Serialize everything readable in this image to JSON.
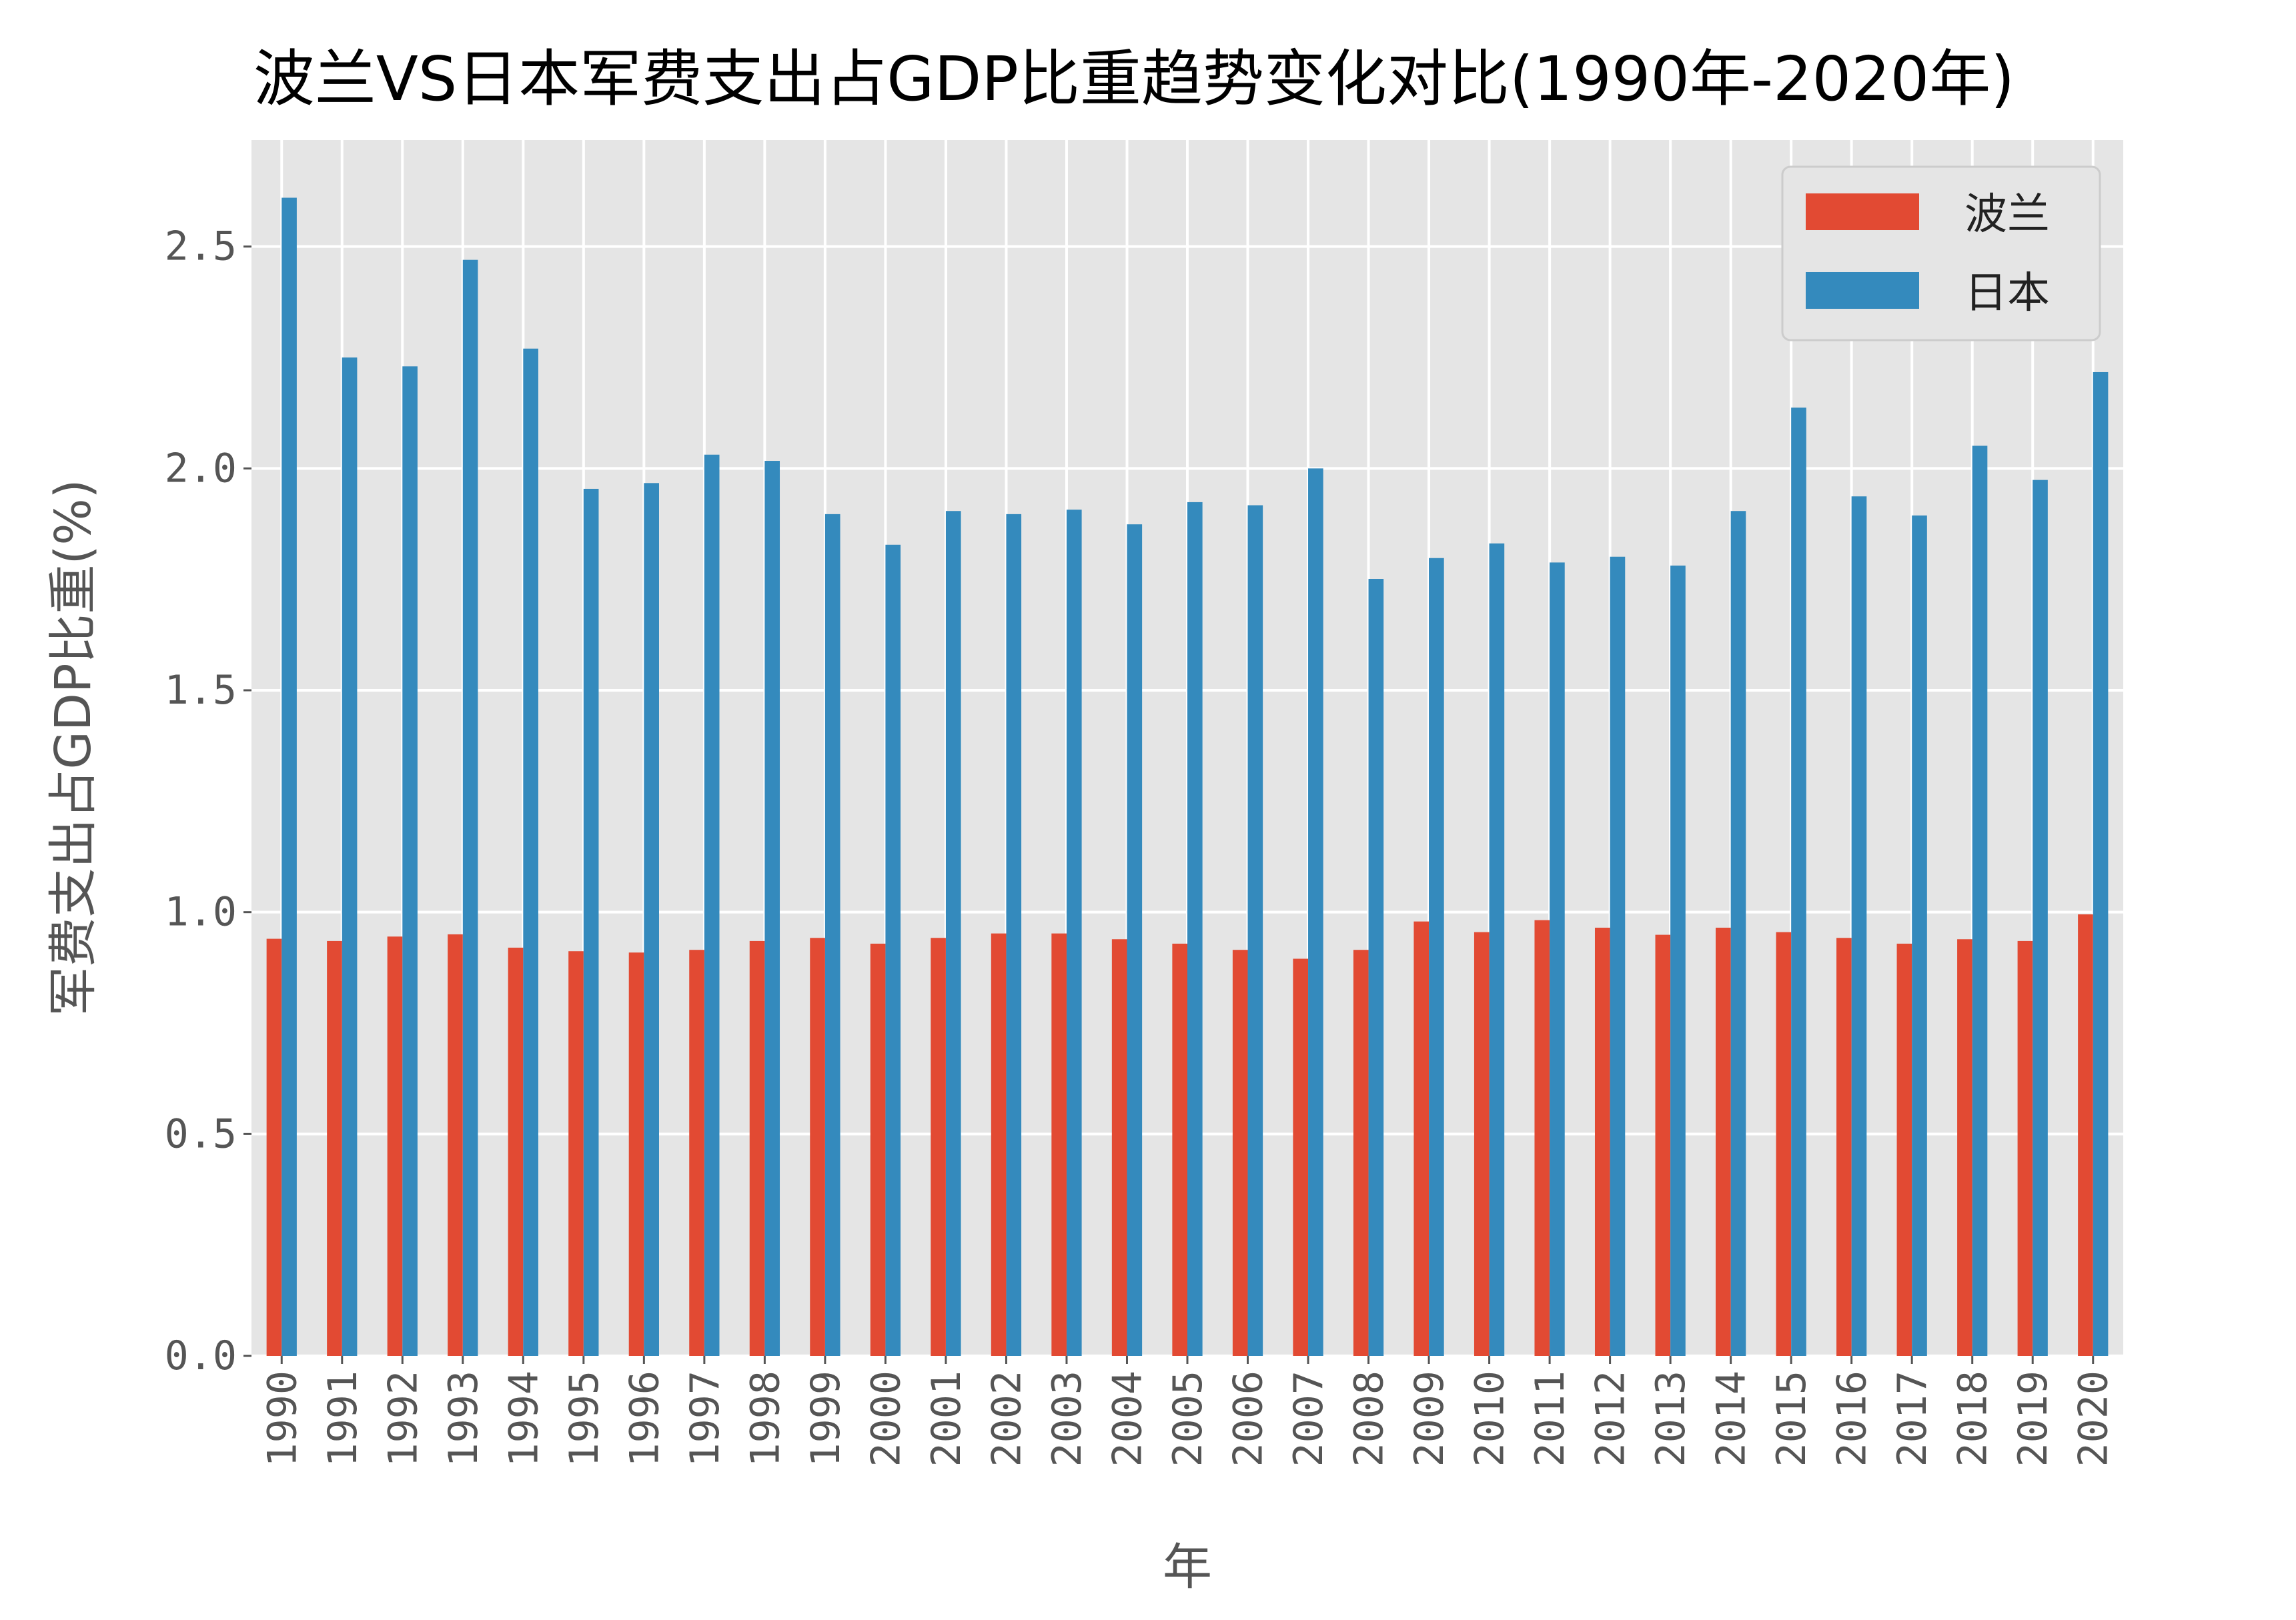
{
  "chart_data": {
    "type": "bar",
    "title": "波兰VS日本军费支出占GDP比重趋势变化对比(1990年-2020年)",
    "xlabel": "年",
    "ylabel": "军费支出占GDP比重(%)",
    "ylim": [
      0,
      2.74
    ],
    "yticks": [
      "0.0",
      "0.5",
      "1.0",
      "1.5",
      "2.0",
      "2.5"
    ],
    "grid": true,
    "legend_position": "top-right",
    "categories": [
      "1990",
      "1991",
      "1992",
      "1993",
      "1994",
      "1995",
      "1996",
      "1997",
      "1998",
      "1999",
      "2000",
      "2001",
      "2002",
      "2003",
      "2004",
      "2005",
      "2006",
      "2007",
      "2008",
      "2009",
      "2010",
      "2011",
      "2012",
      "2013",
      "2014",
      "2015",
      "2016",
      "2017",
      "2018",
      "2019",
      "2020"
    ],
    "series": [
      {
        "name": "波兰",
        "color": "#E24A33",
        "values": [
          0.94,
          0.935,
          0.945,
          0.95,
          0.92,
          0.912,
          0.909,
          0.915,
          0.935,
          0.942,
          0.929,
          0.942,
          0.952,
          0.952,
          0.939,
          0.929,
          0.915,
          0.895,
          0.915,
          0.979,
          0.955,
          0.982,
          0.965,
          0.949,
          0.965,
          0.955,
          0.942,
          0.929,
          0.939,
          0.935,
          0.995
        ]
      },
      {
        "name": "日本",
        "color": "#348ABD",
        "values": [
          2.61,
          2.25,
          2.23,
          2.47,
          2.27,
          1.954,
          1.967,
          2.031,
          2.017,
          1.897,
          1.828,
          1.904,
          1.897,
          1.907,
          1.874,
          1.924,
          1.917,
          2.0,
          1.751,
          1.798,
          1.831,
          1.788,
          1.801,
          1.781,
          1.904,
          2.137,
          1.937,
          1.894,
          2.051,
          1.974,
          2.217
        ]
      }
    ]
  }
}
